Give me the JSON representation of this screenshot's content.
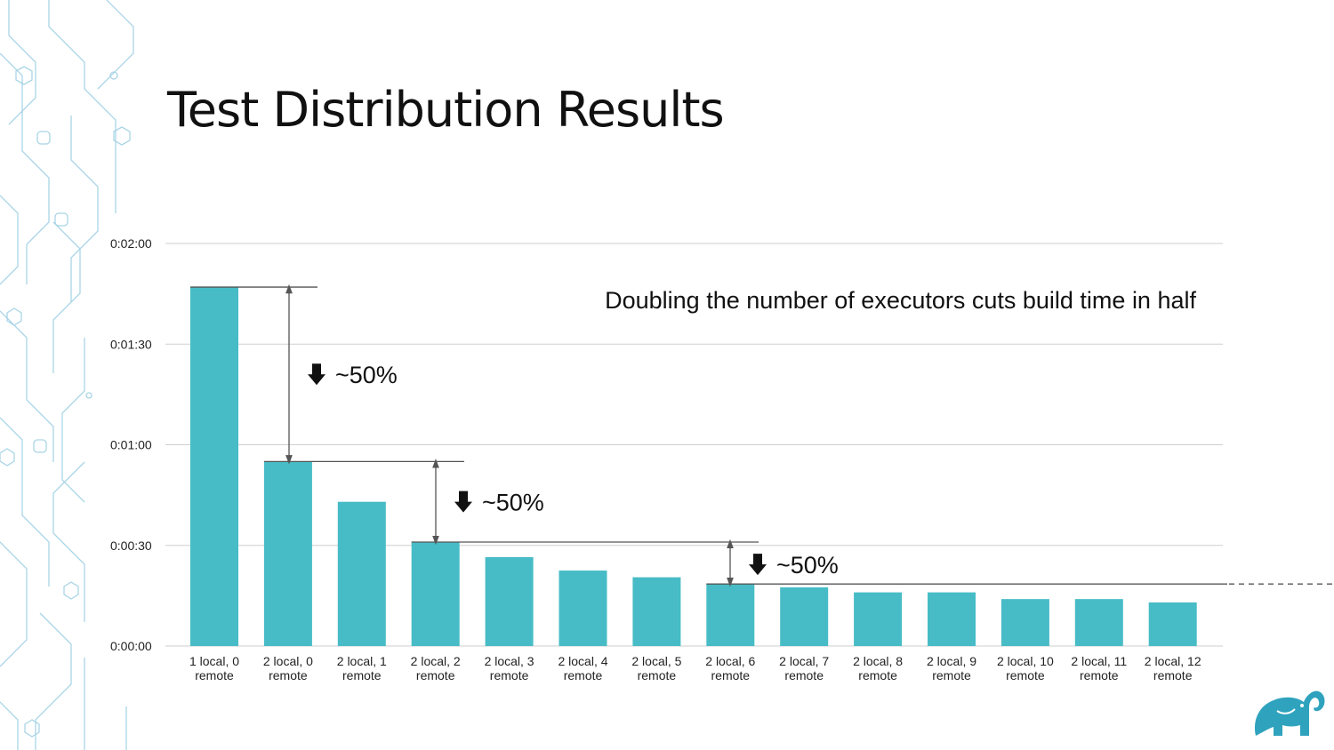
{
  "slide": {
    "title": "Test Distribution Results"
  },
  "chart_data": {
    "type": "bar",
    "categories": [
      "1 local, 0 remote",
      "2 local, 0 remote",
      "2 local, 1 remote",
      "2 local, 2 remote",
      "2 local, 3 remote",
      "2 local, 4 remote",
      "2 local, 5 remote",
      "2 local, 6 remote",
      "2 local, 7 remote",
      "2 local, 8 remote",
      "2 local, 9 remote",
      "2 local, 10 remote",
      "2 local, 11 remote",
      "2 local, 12 remote"
    ],
    "category_lines": [
      [
        "1 local, 0",
        "remote"
      ],
      [
        "2 local, 0",
        "remote"
      ],
      [
        "2 local, 1",
        "remote"
      ],
      [
        "2 local, 2",
        "remote"
      ],
      [
        "2 local, 3",
        "remote"
      ],
      [
        "2 local, 4",
        "remote"
      ],
      [
        "2 local, 5",
        "remote"
      ],
      [
        "2 local, 6",
        "remote"
      ],
      [
        "2 local, 7",
        "remote"
      ],
      [
        "2 local, 8",
        "remote"
      ],
      [
        "2 local, 9",
        "remote"
      ],
      [
        "2 local, 10",
        "remote"
      ],
      [
        "2 local, 11",
        "remote"
      ],
      [
        "2 local, 12",
        "remote"
      ]
    ],
    "values_seconds": [
      107,
      55,
      43,
      31,
      26.5,
      22.5,
      20.5,
      18.5,
      17.5,
      16,
      16,
      14,
      14,
      13
    ],
    "ylim_seconds": [
      0,
      120
    ],
    "yticks": [
      {
        "value": 0,
        "label": "0:00:00"
      },
      {
        "value": 30,
        "label": "0:00:30"
      },
      {
        "value": 60,
        "label": "0:01:00"
      },
      {
        "value": 90,
        "label": "0:01:30"
      },
      {
        "value": 120,
        "label": "0:02:00"
      }
    ],
    "grid": true,
    "bar_color": "#47bcc6",
    "annotation_text": "Doubling the number of executors cuts build time in half",
    "markers": [
      {
        "from_index": 0,
        "to_index": 1,
        "label": "~50%"
      },
      {
        "from_index": 1,
        "to_index": 3,
        "label": "~50%"
      },
      {
        "from_index": 3,
        "to_index": 7,
        "label": "~50%"
      }
    ]
  }
}
